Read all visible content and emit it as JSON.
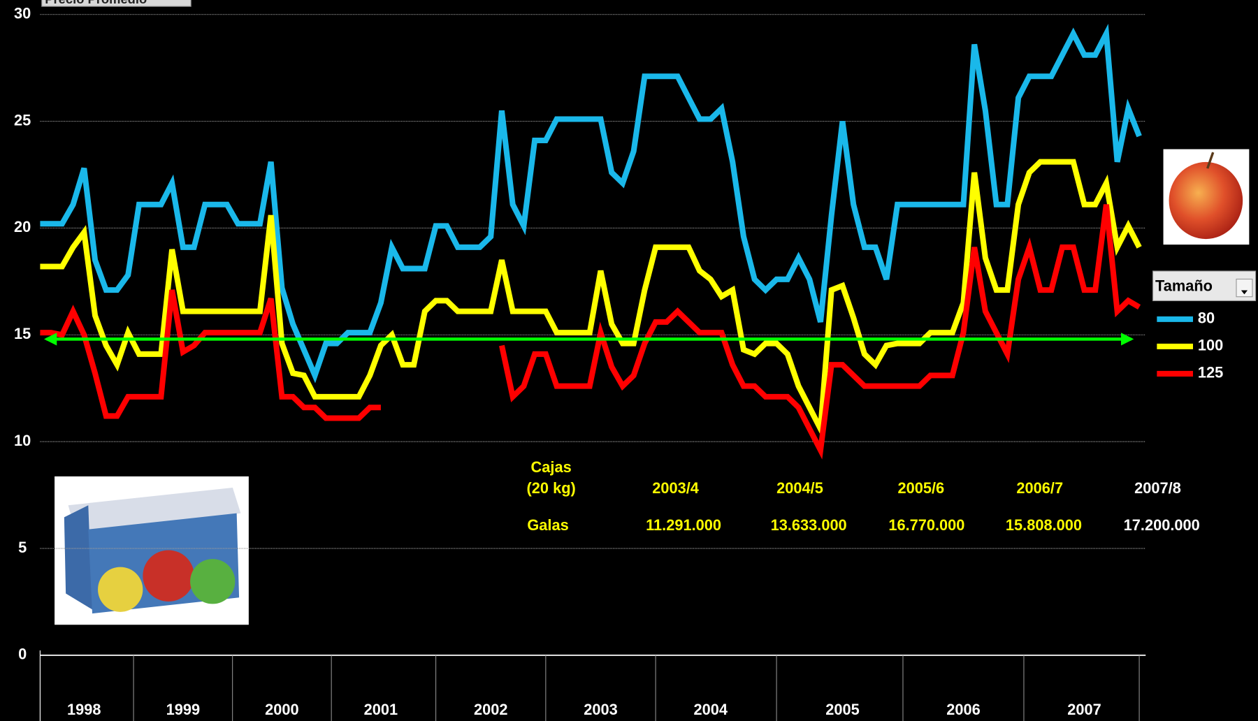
{
  "chart_data": {
    "type": "line",
    "title": "Precio Promedio",
    "categories": [
      null,
      null,
      null,
      null,
      "1998",
      null,
      null,
      null,
      null,
      null,
      null,
      null,
      null,
      "1999",
      null,
      null,
      null,
      null,
      null,
      null,
      null,
      null,
      "2000",
      null,
      null,
      null,
      null,
      null,
      null,
      null,
      null,
      "2001",
      null,
      null,
      null,
      null,
      null,
      null,
      null,
      null,
      null,
      "2002",
      null,
      null,
      null,
      null,
      null,
      null,
      null,
      null,
      null,
      "2003",
      null,
      null,
      null,
      null,
      null,
      null,
      null,
      null,
      null,
      "2004",
      null,
      null,
      null,
      null,
      null,
      null,
      null,
      null,
      null,
      null,
      null,
      "2005",
      null,
      null,
      null,
      null,
      null,
      null,
      null,
      null,
      null,
      null,
      "2006",
      null,
      null,
      null,
      null,
      null,
      null,
      null,
      null,
      null,
      null,
      "2007",
      null,
      null,
      null,
      null,
      null
    ],
    "series": [
      {
        "name": "80",
        "color": "#1ab8ea",
        "values": [
          20.2,
          20.2,
          20.2,
          21.1,
          22.8,
          18.5,
          17.1,
          17.1,
          17.8,
          21.1,
          21.1,
          21.1,
          22.1,
          19.1,
          19.1,
          21.1,
          21.1,
          21.1,
          20.2,
          20.2,
          20.2,
          23.1,
          17.2,
          15.5,
          14.3,
          13.1,
          14.6,
          14.6,
          15.1,
          15.1,
          15.1,
          16.5,
          19.1,
          18.1,
          18.1,
          18.1,
          20.1,
          20.1,
          19.1,
          19.1,
          19.1,
          19.6,
          25.5,
          21.1,
          20.1,
          24.1,
          24.1,
          25.1,
          25.1,
          25.1,
          25.1,
          25.1,
          22.6,
          22.1,
          23.6,
          27.1,
          27.1,
          27.1,
          27.1,
          26.1,
          25.1,
          25.1,
          25.6,
          23.1,
          19.6,
          17.6,
          17.1,
          17.6,
          17.6,
          18.6,
          17.6,
          15.6,
          20.6,
          25.0,
          21.1,
          19.1,
          19.1,
          17.6,
          21.1,
          21.1,
          21.1,
          21.1,
          21.1,
          21.1,
          21.1,
          28.6,
          25.5,
          21.1,
          21.1,
          26.1,
          27.1,
          27.1,
          27.1,
          28.1,
          29.1,
          28.1,
          28.1,
          29.1,
          23.1,
          25.6,
          24.3
        ]
      },
      {
        "name": "100",
        "color": "#ffff00",
        "values": [
          18.2,
          18.2,
          18.2,
          19.1,
          19.8,
          15.9,
          14.5,
          13.6,
          15.1,
          14.1,
          14.1,
          14.1,
          19.0,
          16.1,
          16.1,
          16.1,
          16.1,
          16.1,
          16.1,
          16.1,
          16.1,
          20.6,
          14.6,
          13.2,
          13.1,
          12.1,
          12.1,
          12.1,
          12.1,
          12.1,
          13.1,
          14.5,
          15.0,
          13.6,
          13.6,
          16.1,
          16.6,
          16.6,
          16.1,
          16.1,
          16.1,
          16.1,
          18.5,
          16.1,
          16.1,
          16.1,
          16.1,
          15.1,
          15.1,
          15.1,
          15.1,
          18.0,
          15.5,
          14.6,
          14.6,
          17.1,
          19.1,
          19.1,
          19.1,
          19.1,
          18.0,
          17.6,
          16.8,
          17.1,
          14.3,
          14.1,
          14.6,
          14.6,
          14.1,
          12.6,
          11.6,
          10.6,
          17.1,
          17.3,
          15.8,
          14.1,
          13.6,
          14.5,
          14.6,
          14.6,
          14.6,
          15.1,
          15.1,
          15.1,
          16.5,
          22.6,
          18.6,
          17.1,
          17.1,
          21.1,
          22.6,
          23.1,
          23.1,
          23.1,
          23.1,
          21.1,
          21.1,
          22.1,
          19.1,
          20.1,
          19.1
        ]
      },
      {
        "name": "125",
        "color": "#ff0000",
        "values": [
          15.1,
          15.1,
          15.0,
          16.1,
          15.0,
          13.2,
          11.2,
          11.2,
          12.1,
          12.1,
          12.1,
          12.1,
          17.1,
          14.2,
          14.5,
          15.1,
          15.1,
          15.1,
          15.1,
          15.1,
          15.1,
          16.7,
          12.1,
          12.1,
          11.6,
          11.6,
          11.1,
          11.1,
          11.1,
          11.1,
          11.6,
          11.6,
          null,
          null,
          null,
          null,
          null,
          null,
          null,
          null,
          null,
          null,
          14.5,
          12.1,
          12.6,
          14.1,
          14.1,
          12.6,
          12.6,
          12.6,
          12.6,
          15.1,
          13.5,
          12.6,
          13.1,
          14.6,
          15.6,
          15.6,
          16.1,
          15.6,
          15.1,
          15.1,
          15.1,
          13.6,
          12.6,
          12.6,
          12.1,
          12.1,
          12.1,
          11.6,
          10.6,
          9.6,
          13.6,
          13.6,
          13.1,
          12.6,
          12.6,
          12.6,
          12.6,
          12.6,
          12.6,
          13.1,
          13.1,
          13.1,
          15.1,
          19.1,
          16.1,
          15.1,
          14.1,
          17.6,
          19.1,
          17.1,
          17.1,
          19.1,
          19.1,
          17.1,
          17.1,
          21.1,
          16.1,
          16.6,
          16.3
        ]
      }
    ],
    "ylim": [
      0,
      30
    ],
    "yticks": [
      0,
      5,
      10,
      15,
      20,
      25,
      30
    ],
    "grid": true,
    "reference_line": {
      "value": 14.8,
      "color": "#00ff00"
    },
    "legend": {
      "title": "Tamaño",
      "position": "right"
    },
    "table": {
      "corner": [
        "Cajas",
        "(20 kg)"
      ],
      "columns": [
        "2003/4",
        "2004/5",
        "2005/6",
        "2006/7",
        "2007/8"
      ],
      "row_label": "Galas",
      "values": [
        "11.291.000",
        "13.633.000",
        "16.770.000",
        "15.808.000",
        "17.200.000"
      ]
    }
  }
}
